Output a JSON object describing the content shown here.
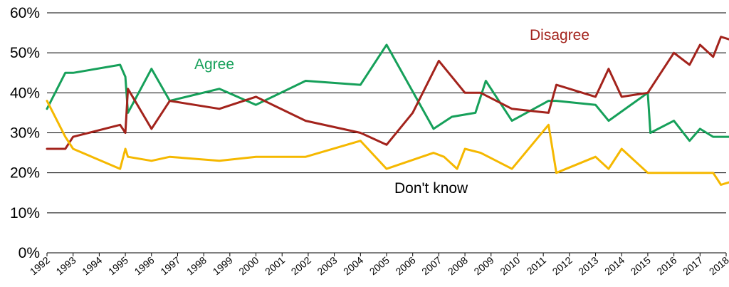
{
  "chart_data": {
    "type": "line",
    "title": "",
    "xlabel": "",
    "ylabel": "",
    "ylim": [
      0,
      60
    ],
    "y_ticks": [
      "0%",
      "10%",
      "20%",
      "30%",
      "40%",
      "50%",
      "60%"
    ],
    "y_tick_values": [
      0,
      10,
      20,
      30,
      40,
      50,
      60
    ],
    "xlim": [
      1992,
      2018
    ],
    "x_ticks": [
      "1992",
      "1993",
      "1994",
      "1995",
      "1996",
      "1997",
      "1998",
      "1999",
      "2000",
      "2001",
      "2002",
      "2003",
      "2004",
      "2005",
      "2006",
      "2007",
      "2008",
      "2009",
      "2010",
      "2011",
      "2012",
      "2013",
      "2014",
      "2015",
      "2016",
      "2017",
      "2018"
    ],
    "grid": "horizontal",
    "legend": "inline labels",
    "series": [
      {
        "name": "Agree",
        "color": "#16a05a",
        "x": [
          1992.0,
          1992.7,
          1993.0,
          1994.8,
          1995.0,
          1995.1,
          1996.0,
          1996.7,
          1998.6,
          2000.0,
          2001.9,
          2004.0,
          2005.0,
          2006.8,
          2007.5,
          2008.4,
          2008.8,
          2009.8,
          2011.2,
          2011.5,
          2013.0,
          2013.5,
          2015.0,
          2015.1,
          2016.0,
          2016.6,
          2017.0,
          2017.5,
          2017.8,
          2018.3
        ],
        "y": [
          36,
          45,
          45,
          47,
          44,
          35,
          46,
          38,
          41,
          37,
          43,
          42,
          52,
          31,
          34,
          35,
          43,
          33,
          38,
          38,
          37,
          33,
          40,
          30,
          33,
          28,
          31,
          29,
          29,
          29
        ]
      },
      {
        "name": "Disagree",
        "color": "#a3231c",
        "x": [
          1992.0,
          1992.7,
          1993.0,
          1994.8,
          1995.0,
          1995.1,
          1996.0,
          1996.7,
          1998.6,
          2000.0,
          2001.9,
          2004.0,
          2005.0,
          2006.0,
          2007.0,
          2008.0,
          2008.6,
          2009.8,
          2011.2,
          2011.5,
          2013.0,
          2013.5,
          2014.0,
          2015.0,
          2016.0,
          2016.6,
          2017.0,
          2017.5,
          2017.8,
          2018.3
        ],
        "y": [
          26,
          26,
          29,
          32,
          30,
          41,
          31,
          38,
          36,
          39,
          33,
          30,
          27,
          35,
          48,
          40,
          40,
          36,
          35,
          42,
          39,
          46,
          39,
          40,
          50,
          47,
          52,
          49,
          54,
          53
        ]
      },
      {
        "name": "Don't know",
        "color": "#f5b800",
        "x": [
          1992.0,
          1992.7,
          1993.0,
          1994.8,
          1995.0,
          1995.1,
          1996.0,
          1996.7,
          1998.6,
          2000.0,
          2001.9,
          2004.0,
          2005.0,
          2006.8,
          2007.2,
          2007.7,
          2008.0,
          2008.6,
          2009.8,
          2011.2,
          2011.5,
          2013.0,
          2013.5,
          2014.0,
          2015.0,
          2016.0,
          2016.6,
          2017.0,
          2017.5,
          2017.8,
          2018.3
        ],
        "y": [
          38,
          29,
          26,
          21,
          26,
          24,
          23,
          24,
          23,
          24,
          24,
          28,
          21,
          25,
          24,
          21,
          26,
          25,
          21,
          32,
          20,
          24,
          21,
          26,
          20,
          20,
          20,
          20,
          20,
          17,
          18
        ]
      }
    ],
    "annotations": [
      {
        "text": "Agree",
        "series": "Agree"
      },
      {
        "text": "Disagree",
        "series": "Disagree"
      },
      {
        "text": "Don't know",
        "series": "Don't know"
      }
    ]
  }
}
